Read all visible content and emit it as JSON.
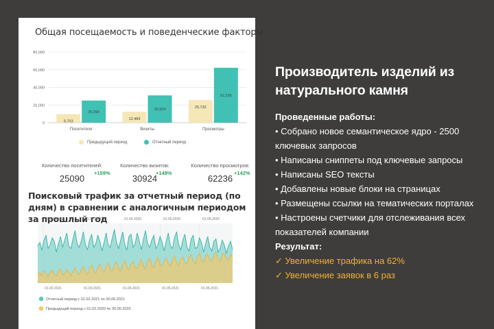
{
  "bar_chart": {
    "title": "Общая посещаемость и поведенческие факторы",
    "chart_data": {
      "type": "bar",
      "categories": [
        "Посетители",
        "Визиты",
        "Просмотры"
      ],
      "series": [
        {
          "name": "Предыдущий период",
          "values": [
            9703,
            12489,
            25732
          ],
          "labels": [
            "9,703",
            "12,489",
            "25,732"
          ],
          "color": "#f6e7b8"
        },
        {
          "name": "Отчетный период",
          "values": [
            25090,
            30924,
            62236
          ],
          "labels": [
            "25,090",
            "30,924",
            "62,236"
          ],
          "color": "#40c1b4"
        }
      ],
      "ylim": [
        0,
        80000
      ],
      "yticks": [
        0,
        20000,
        40000,
        60000,
        80000
      ],
      "ytick_labels": [
        "0",
        "20,000",
        "40,000",
        "60,000",
        "80,000"
      ],
      "grid": true,
      "legend": "bottom"
    }
  },
  "stats": [
    {
      "label": "Количество посетителей:",
      "value": "25090",
      "change": "+159%"
    },
    {
      "label": "Количество визитов:",
      "value": "30924",
      "change": "+148%"
    },
    {
      "label": "Количество просмотров:",
      "value": "62236",
      "change": "+142%"
    }
  ],
  "area_chart": {
    "title": "Поисковый трафик за отчетный период (по дням) в сравнении с аналогичным периодом за прошлый год",
    "chart_data": {
      "type": "area",
      "top_axis_labels": [
        "01.02.2020",
        "01.03.2020",
        "01.04.2020",
        "01.05.2020",
        "01.06.2020"
      ],
      "bottom_axis_labels": [
        "01.02.2021",
        "01.03.2021",
        "01.04.2021",
        "01.05.2021",
        "01.06.2021"
      ],
      "series": [
        {
          "name": "Отчетный период с 01.02.2021 по 30.06.2021",
          "color": "#5ec9bf",
          "values": [
            62,
            68,
            55,
            72,
            80,
            58,
            64,
            76,
            70,
            52,
            66,
            78,
            60,
            72,
            84,
            62,
            58,
            74,
            88,
            66,
            60,
            70,
            86,
            64,
            56,
            72,
            82,
            60,
            66,
            80,
            70,
            54,
            68,
            84,
            64,
            60,
            76,
            90,
            68,
            58,
            72,
            86,
            64,
            56,
            78,
            82,
            60,
            66,
            84,
            70,
            56,
            74,
            88,
            66,
            60,
            72,
            80,
            58,
            64,
            78,
            68,
            54,
            70,
            84,
            62,
            58,
            76,
            86,
            64,
            56,
            72,
            82,
            60,
            54,
            74,
            80,
            58,
            60,
            76,
            68,
            52,
            66,
            78,
            60,
            54,
            70,
            74,
            52,
            58,
            72,
            64,
            50,
            62,
            70,
            56
          ]
        },
        {
          "name": "Предыдущий период с 01.02.2020 по 30.06.2020",
          "color": "#f2c86a",
          "values": [
            14,
            18,
            12,
            20,
            16,
            10,
            18,
            22,
            14,
            12,
            20,
            24,
            14,
            16,
            22,
            18,
            12,
            20,
            26,
            16,
            14,
            22,
            28,
            18,
            14,
            24,
            30,
            20,
            16,
            26,
            32,
            22,
            18,
            28,
            34,
            22,
            20,
            30,
            36,
            24,
            20,
            30,
            38,
            26,
            22,
            32,
            36,
            26,
            24,
            34,
            40,
            28,
            24,
            36,
            42,
            30,
            26,
            36,
            44,
            30,
            28,
            38,
            42,
            32,
            28,
            40,
            46,
            34,
            30,
            40,
            44,
            34,
            32,
            42,
            48,
            36,
            32,
            44,
            50,
            38,
            34,
            46,
            48,
            38,
            36,
            46,
            52,
            40,
            36,
            48,
            50,
            40,
            38,
            48,
            44
          ]
        }
      ],
      "legend": "bottom-left"
    }
  },
  "right_panel": {
    "title": "Производитель изделий из натурального камня",
    "works_heading": "Проведенные работы:",
    "works": [
      "• Собрано новое семантическое ядро - 2500 ключевых запросов",
      "• Написаны сниппеты под ключевые запросы",
      "• Написаны SEO тексты",
      "• Добавлены новые блоки на страницах",
      "• Размещены ссылки на тематических порталах",
      "• Настроены счетчики для отслеживания всех показателей компании"
    ],
    "result_heading": "Результат:",
    "results": [
      "✓ Увеличение трафика на 62%",
      "✓ Увеличение заявок в 6 раз"
    ]
  }
}
